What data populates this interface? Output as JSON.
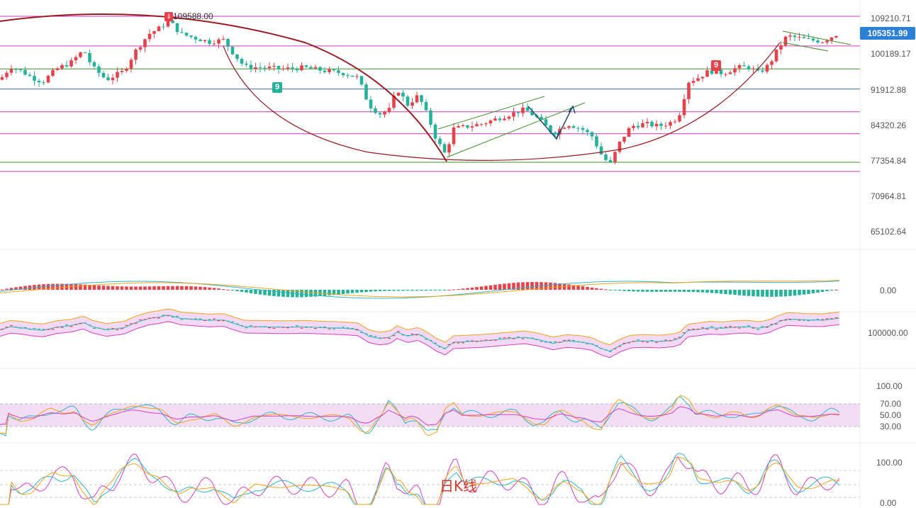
{
  "colors": {
    "up": "#e5424b",
    "down": "#26b29a",
    "price_tag_bg": "#2b7fd6",
    "magenta_line": "#c43ab9",
    "green_line": "#3d8f28",
    "blue_line": "#3a6fa8",
    "arc": "#9b1b22",
    "channel": "#3d8f28",
    "arrow": "#1d4e6e",
    "k_line": "#2fb5c7",
    "d_line": "#f0a31a",
    "j_line": "#d63fc0",
    "boll_fill": "#f3d9f3",
    "rsi_band": "#f3ddf5"
  },
  "price_axis": {
    "ticks": [
      "109210.71",
      "100189.17",
      "91912.88",
      "84320.26",
      "77354.84",
      "70964.81",
      "65102.64"
    ],
    "current": "105351.99",
    "high_label": "109588.00"
  },
  "macd_axis": {
    "ticks": [
      "0.00"
    ]
  },
  "boll_axis": {
    "ticks": [
      "100000.00"
    ]
  },
  "rsi_axis": {
    "ticks": [
      "100.00",
      "70.00",
      "50.00",
      "30.00"
    ]
  },
  "kdj_axis": {
    "ticks": [
      "100.00",
      "0.00"
    ]
  },
  "markers": {
    "sell_nine": "9",
    "buy_nine": "9",
    "top_nine": "9"
  },
  "watermark": "日K线",
  "chart_data": {
    "type": "candlestick",
    "title": "",
    "series": [
      {
        "name": "",
        "kind": "ohlc",
        "note_scale": "log",
        "ylim": [
          60000,
          115000
        ]
      }
    ],
    "horizontal_levels": [
      109588,
      102000,
      96500,
      91912,
      87000,
      82500,
      77354,
      75500
    ],
    "annotations": [
      "109588.00",
      "9",
      "9",
      "9",
      "日K线"
    ]
  }
}
